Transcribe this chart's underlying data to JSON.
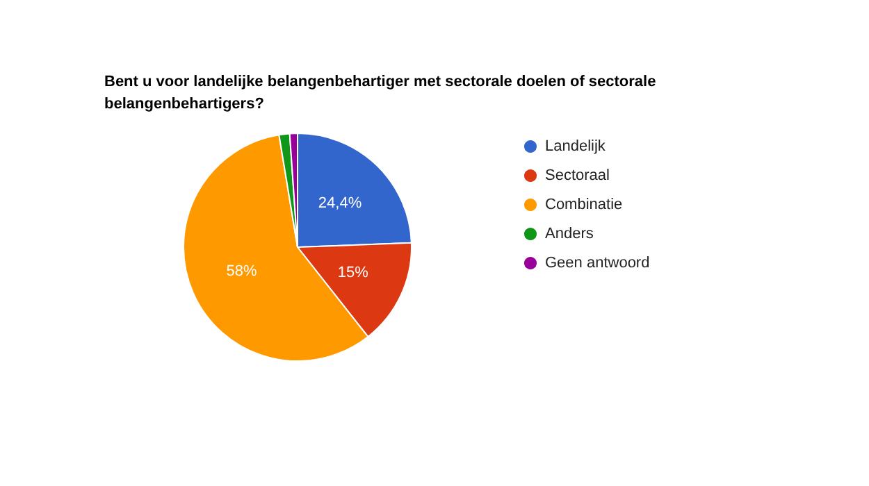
{
  "chart_data": {
    "type": "pie",
    "title": "Bent u voor landelijke belangenbehartiger met sectorale doelen of sectorale belangenbehartigers?",
    "categories": [
      "Landelijk",
      "Sectoraal",
      "Combinatie",
      "Anders",
      "Geen antwoord"
    ],
    "values": [
      24.4,
      15,
      58,
      1.5,
      1.1
    ],
    "value_labels": [
      "24,4%",
      "15%",
      "58%",
      null,
      null
    ],
    "colors": [
      "#3366cc",
      "#dc3912",
      "#ff9900",
      "#109618",
      "#990099"
    ],
    "legend": "right"
  }
}
